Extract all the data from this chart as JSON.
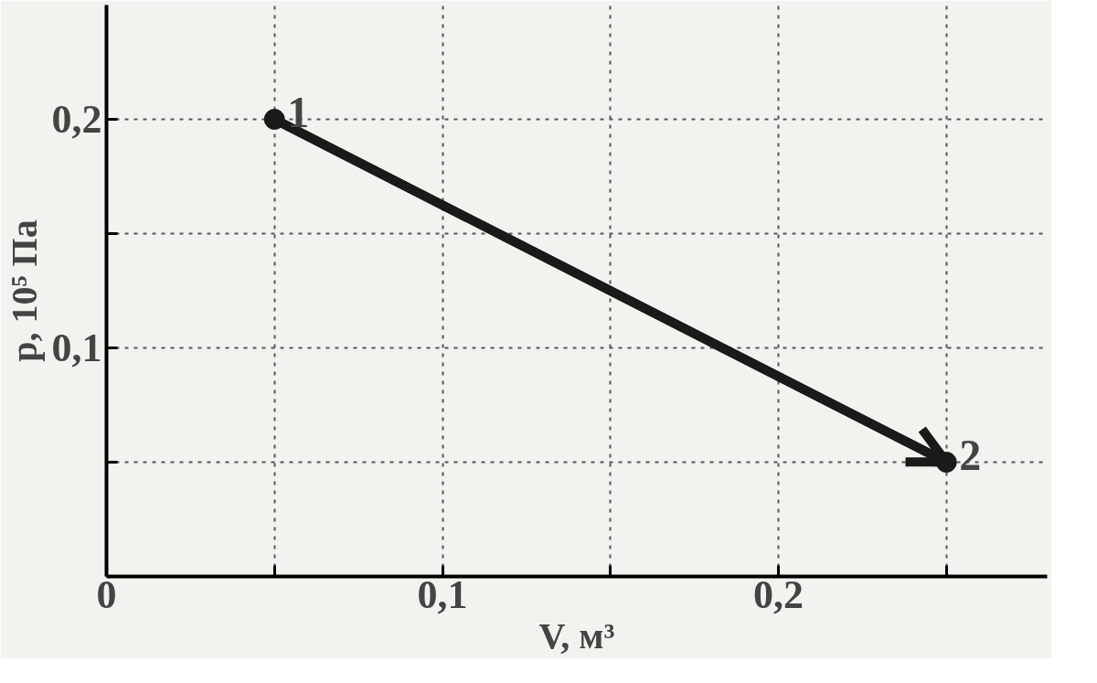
{
  "chart_data": {
    "type": "line",
    "xlabel": "V, м³",
    "ylabel": "p, 10⁵ Па",
    "x": [
      0.05,
      0.25
    ],
    "series": [
      {
        "color": "#1a1a1a",
        "values": [
          0.2,
          0.05
        ]
      }
    ],
    "marker": "circle",
    "line_style": "solid",
    "grid": true,
    "xlim": [
      0,
      0.28
    ],
    "ylim": [
      0,
      0.25
    ],
    "xticks": [
      {
        "value": 0,
        "label": "0"
      },
      {
        "value": 0.05,
        "label": null
      },
      {
        "value": 0.1,
        "label": "0,1"
      },
      {
        "value": 0.15,
        "label": null
      },
      {
        "value": 0.2,
        "label": "0,2"
      },
      {
        "value": 0.25,
        "label": null
      }
    ],
    "yticks": [
      {
        "value": 0.05,
        "label": null
      },
      {
        "value": 0.1,
        "label": "0,1"
      },
      {
        "value": 0.15,
        "label": null
      },
      {
        "value": 0.2,
        "label": "0,2"
      }
    ],
    "annotations": [
      {
        "text": "1",
        "x": 0.05,
        "y": 0.2
      },
      {
        "text": "2",
        "x": 0.25,
        "y": 0.05
      }
    ]
  }
}
